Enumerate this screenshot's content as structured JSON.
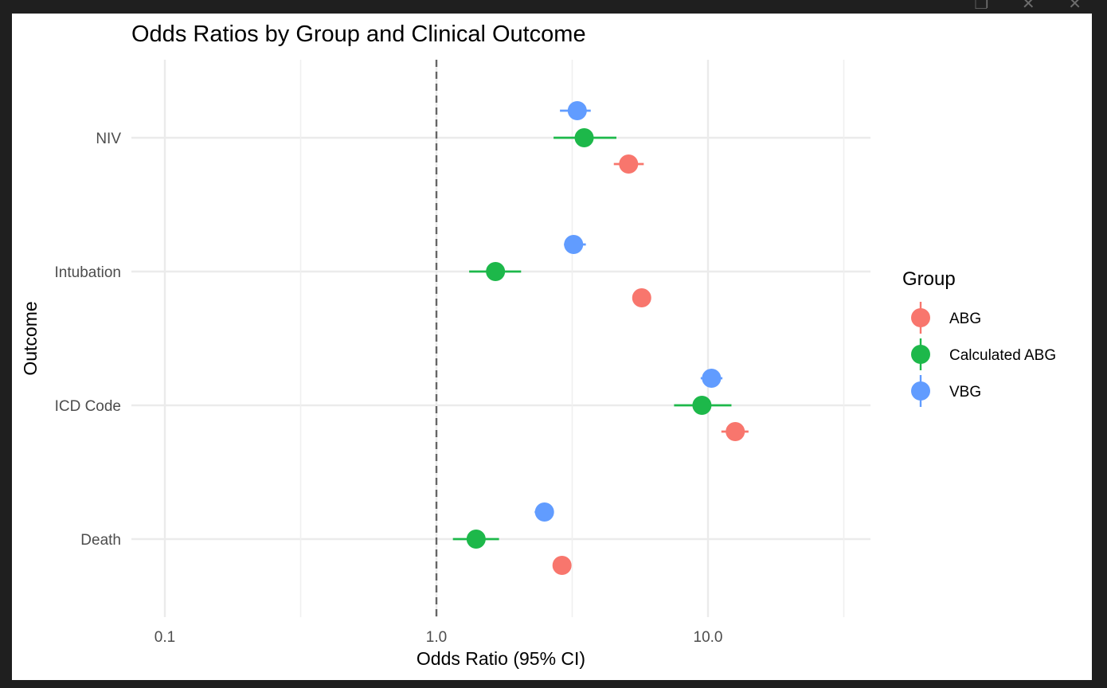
{
  "window": {
    "controls": [
      "❐",
      "✕",
      "✕"
    ]
  },
  "chart_data": {
    "type": "scatter",
    "title": "Odds Ratios by Group and Clinical Outcome",
    "xlabel": "Odds Ratio (95% CI)",
    "ylabel": "Outcome",
    "x_scale": "log10",
    "xlim": [
      0.06,
      45
    ],
    "x_ticks": [
      0.1,
      1.0,
      10.0
    ],
    "x_tick_labels": [
      "0.1",
      "1.0",
      "10.0"
    ],
    "reference_line": 1.0,
    "categories": [
      "NIV",
      "Intubation",
      "ICD Code",
      "Death"
    ],
    "legend": {
      "title": "Group",
      "position": "right"
    },
    "grid": true,
    "series": [
      {
        "name": "ABG",
        "color": "#F8766D",
        "points": [
          {
            "category": "NIV",
            "or": 5.1,
            "lo": 4.5,
            "hi": 5.8
          },
          {
            "category": "Intubation",
            "or": 5.7,
            "lo": 5.4,
            "hi": 6.0
          },
          {
            "category": "ICD Code",
            "or": 12.6,
            "lo": 11.2,
            "hi": 14.1
          },
          {
            "category": "Death",
            "or": 2.9,
            "lo": 2.75,
            "hi": 3.05
          }
        ]
      },
      {
        "name": "Calculated ABG",
        "color": "#1DB84A",
        "points": [
          {
            "category": "NIV",
            "or": 3.5,
            "lo": 2.7,
            "hi": 4.6
          },
          {
            "category": "Intubation",
            "or": 1.65,
            "lo": 1.32,
            "hi": 2.05
          },
          {
            "category": "ICD Code",
            "or": 9.5,
            "lo": 7.5,
            "hi": 12.2
          },
          {
            "category": "Death",
            "or": 1.4,
            "lo": 1.15,
            "hi": 1.7
          }
        ]
      },
      {
        "name": "VBG",
        "color": "#619CFF",
        "points": [
          {
            "category": "NIV",
            "or": 3.3,
            "lo": 2.85,
            "hi": 3.7
          },
          {
            "category": "Intubation",
            "or": 3.2,
            "lo": 2.95,
            "hi": 3.55
          },
          {
            "category": "ICD Code",
            "or": 10.3,
            "lo": 9.4,
            "hi": 11.3
          },
          {
            "category": "Death",
            "or": 2.5,
            "lo": 2.3,
            "hi": 2.7
          }
        ]
      }
    ]
  }
}
